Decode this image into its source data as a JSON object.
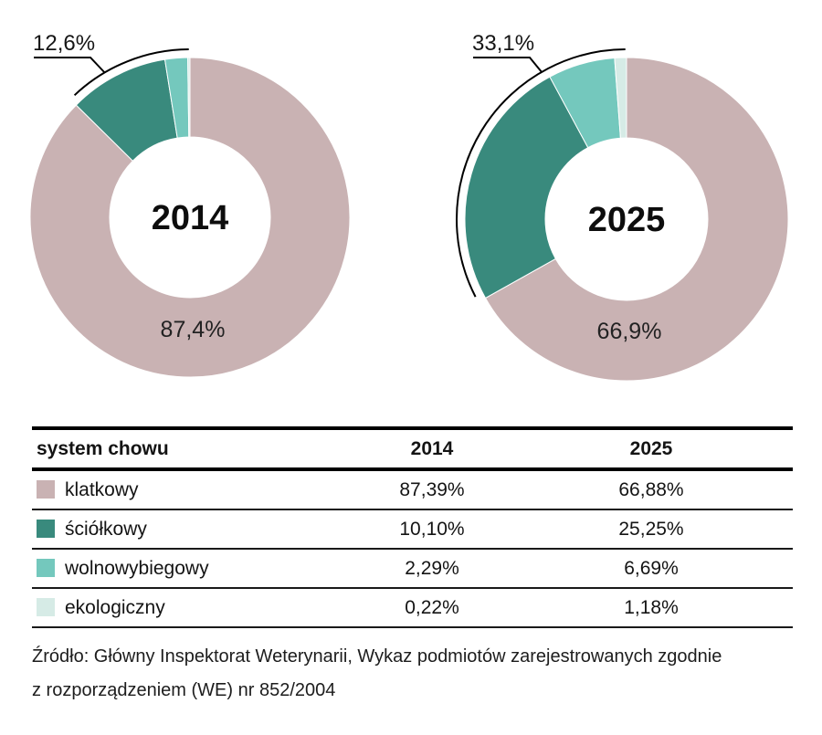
{
  "chart_data": {
    "type": "pie",
    "variant": "donut",
    "legend_position": "table-below",
    "categories": [
      "klatkowy",
      "ściółkowy",
      "wolnowybiegowy",
      "ekologiczny"
    ],
    "colors": [
      "#c9b2b3",
      "#398a7d",
      "#74c8bd",
      "#d6ebe6"
    ],
    "charts": [
      {
        "center_label": "2014",
        "values": [
          87.39,
          10.1,
          2.29,
          0.22
        ],
        "main_share_label": "87,4%",
        "rest_share_label": "12,6%"
      },
      {
        "center_label": "2025",
        "values": [
          66.88,
          25.25,
          6.69,
          1.18
        ],
        "main_share_label": "66,9%",
        "rest_share_label": "33,1%"
      }
    ]
  },
  "table": {
    "headers": [
      "system chowu",
      "2014",
      "2025"
    ],
    "rows": [
      {
        "label": "klatkowy",
        "color": "#c9b2b3",
        "y2014": "87,39%",
        "y2025": "66,88%"
      },
      {
        "label": "ściółkowy",
        "color": "#398a7d",
        "y2014": "10,10%",
        "y2025": "25,25%"
      },
      {
        "label": "wolnowybiegowy",
        "color": "#74c8bd",
        "y2014": "2,29%",
        "y2025": "6,69%"
      },
      {
        "label": "ekologiczny",
        "color": "#d6ebe6",
        "y2014": "0,22%",
        "y2025": "1,18%"
      }
    ]
  },
  "source": {
    "line1": "Źródło: Główny Inspektorat Weterynarii, Wykaz podmiotów zarejestrowanych zgodnie",
    "line2": "z rozporządzeniem (WE) nr 852/2004"
  }
}
